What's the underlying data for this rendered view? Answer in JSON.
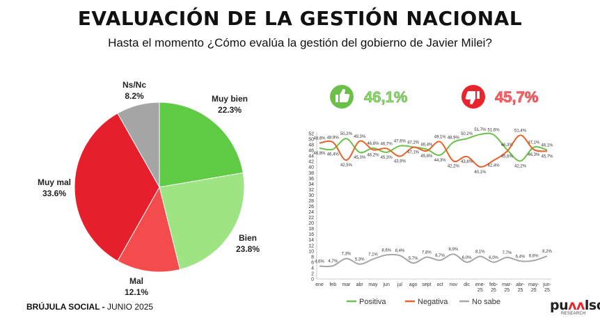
{
  "header": {
    "title": "EVALUACIÓN DE LA GESTIÓN NACIONAL",
    "subtitle": "Hasta el momento ¿Cómo evalúa la gestión del gobierno de Javier Milei?"
  },
  "footer": {
    "source_bold": "BRÚJULA SOCIAL - ",
    "source_light": "JUNIO 2025"
  },
  "logo": {
    "word_a": "pu",
    "word_em": "ʌʌ",
    "word_b": "lso",
    "sub": "RESEARCH"
  },
  "highlights": {
    "positive": {
      "value": "46,1%",
      "color": "#8fdc6e",
      "icon": "thumbs-up-icon"
    },
    "negative": {
      "value": "45,7%",
      "color": "#e9242d",
      "icon": "thumbs-down-icon"
    }
  },
  "chart_data": [
    {
      "type": "pie",
      "slices": [
        {
          "label": "Muy bien",
          "value": 22.3,
          "display": "22.3%",
          "color": "#5fcb45"
        },
        {
          "label": "Bien",
          "value": 23.8,
          "display": "23.8%",
          "color": "#9ee482"
        },
        {
          "label": "Mal",
          "value": 12.1,
          "display": "12.1%",
          "color": "#f44c4c"
        },
        {
          "label": "Muy mal",
          "value": 33.6,
          "display": "33.6%",
          "color": "#e51f2b"
        },
        {
          "label": "Ns/Nc",
          "value": 8.2,
          "display": "8.2%",
          "color": "#a5a5a5"
        }
      ]
    },
    {
      "type": "line",
      "x": [
        "ene",
        "feb",
        "mar",
        "abr",
        "may",
        "jun",
        "jul",
        "ago",
        "sept",
        "oct",
        "nov",
        "dic",
        "ene-\n25",
        "feb-\n25",
        "mar-\n25",
        "abr-\n25",
        "may-\n25",
        "jun-\n25"
      ],
      "yticks": [
        0,
        2,
        4,
        6,
        8,
        10,
        12,
        14,
        16,
        18,
        20,
        22,
        24,
        26,
        28,
        30,
        32,
        34,
        36,
        38,
        40,
        42,
        44,
        46,
        48,
        50,
        52
      ],
      "ylim": [
        0,
        52
      ],
      "grid": false,
      "legend_position": "bottom",
      "series": [
        {
          "name": "Positiva",
          "color": "#6cc04a",
          "values": [
            46.8,
            46.4,
            50.2,
            45.3,
            46.8,
            45.3,
            47.6,
            47.2,
            46.4,
            44.3,
            48.9,
            50.2,
            51.7,
            51.6,
            46.3,
            42.2,
            47.1,
            46.1
          ],
          "labels": [
            "46,8%",
            "46,4%",
            "50,2%",
            "45,3%",
            "46,8%",
            "45,3%",
            "47,6%",
            "47,2%",
            "46,4%",
            "44,3%",
            "48,9%",
            "50,2%",
            "51,7%",
            "51,6%",
            "46,3%",
            "42,2%",
            "47,1%",
            "46,1%"
          ]
        },
        {
          "name": "Negativa",
          "color": "#e8622a",
          "values": [
            48.6,
            48.9,
            42.5,
            49.3,
            46.2,
            46.7,
            43.9,
            47.1,
            45.8,
            49.1,
            42.2,
            43.8,
            40.1,
            42.4,
            45.6,
            51.4,
            46.3,
            45.7
          ],
          "labels": [
            "48,6%",
            "48,9%",
            "42,5%",
            "49,3%",
            "46,2%",
            "46,7%",
            "43,9%",
            "47,1%",
            "45,8%",
            "49,1%",
            "42,2%",
            "43,8%",
            "40,1%",
            "42,4%",
            "45,6%",
            "51,4%",
            "46,3%",
            "45,7%"
          ]
        },
        {
          "name": "No sabe",
          "color": "#a6a6a6",
          "values": [
            4.6,
            4.7,
            7.3,
            5.3,
            7.1,
            8.6,
            8.4,
            5.7,
            7.8,
            6.7,
            8.9,
            6.0,
            8.1,
            6.0,
            7.7,
            6.4,
            6.6,
            8.2
          ],
          "labels": [
            "4,6%",
            "4,7%",
            "7,3%",
            "5,3%",
            "7,1%",
            "8,6%",
            "8,4%",
            "5,7%",
            "7,8%",
            "6,7%",
            "8,9%",
            "6,0%",
            "8,1%",
            "6,0%",
            "7,7%",
            "6,4%",
            "6,6%",
            "8,2%"
          ]
        }
      ]
    }
  ]
}
